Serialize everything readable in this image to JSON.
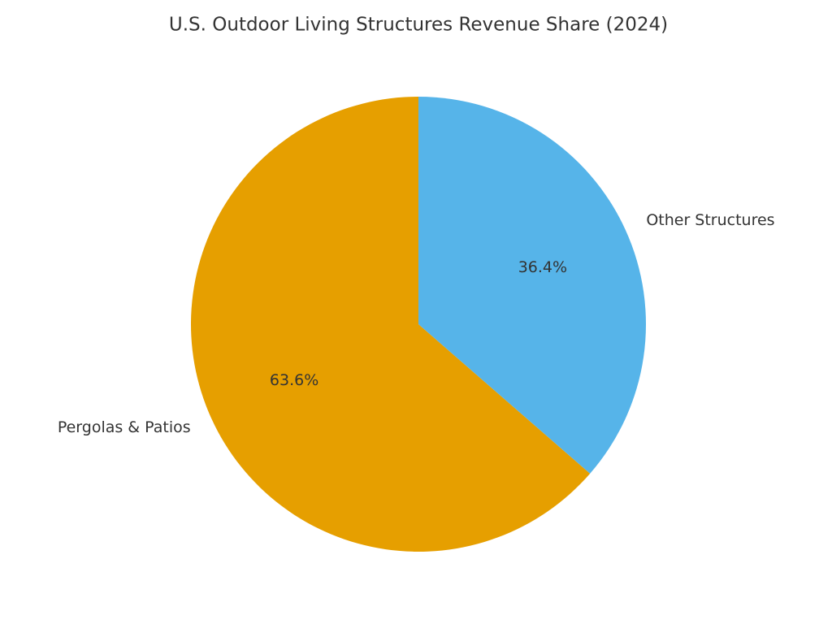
{
  "chart_data": {
    "type": "pie",
    "title": "U.S. Outdoor Living Structures Revenue Share (2024)",
    "categories": [
      "Pergolas & Patios",
      "Other Structures"
    ],
    "values": [
      63.6,
      36.4
    ],
    "value_labels": [
      "63.6%",
      "36.4%"
    ],
    "colors": [
      "#E69F00",
      "#56B4E9"
    ]
  }
}
